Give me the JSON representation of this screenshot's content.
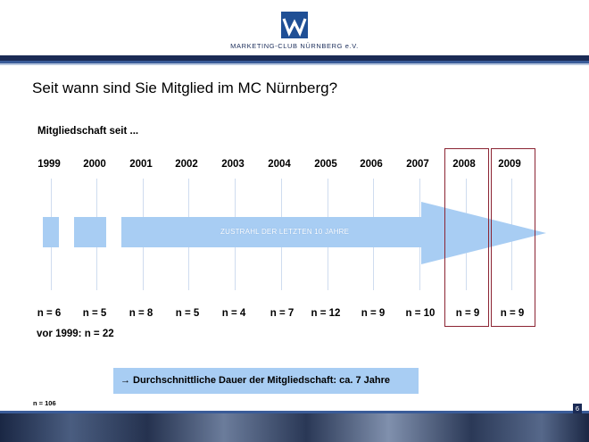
{
  "header": {
    "logo_text": "MARKETING-CLUB NÜRNBERG e.V."
  },
  "title": "Seit wann sind Sie Mitglied im MC Nürnberg?",
  "subtitle": "Mitgliedschaft seit ...",
  "years": [
    "1999",
    "2000",
    "2001",
    "2002",
    "2003",
    "2004",
    "2005",
    "2006",
    "2007",
    "2008",
    "2009"
  ],
  "counts": [
    "n = 6",
    "n = 5",
    "n = 8",
    "n = 5",
    "n = 4",
    "n = 7",
    "n = 12",
    "n = 9",
    "n = 10",
    "n = 9",
    "n = 9"
  ],
  "arrow_label": "ZUSTRAHL DER LETZTEN 10 JAHRE",
  "before_1999": "vor 1999: n = 22",
  "callout": "→ Durchschnittliche Dauer der Mitgliedschaft: ca. 7 Jahre",
  "total": "n = 106",
  "page_number": "6",
  "colors": {
    "navy": "#1b2b55",
    "light_blue": "#a8cdf3",
    "highlight_border": "#8b2433"
  }
}
